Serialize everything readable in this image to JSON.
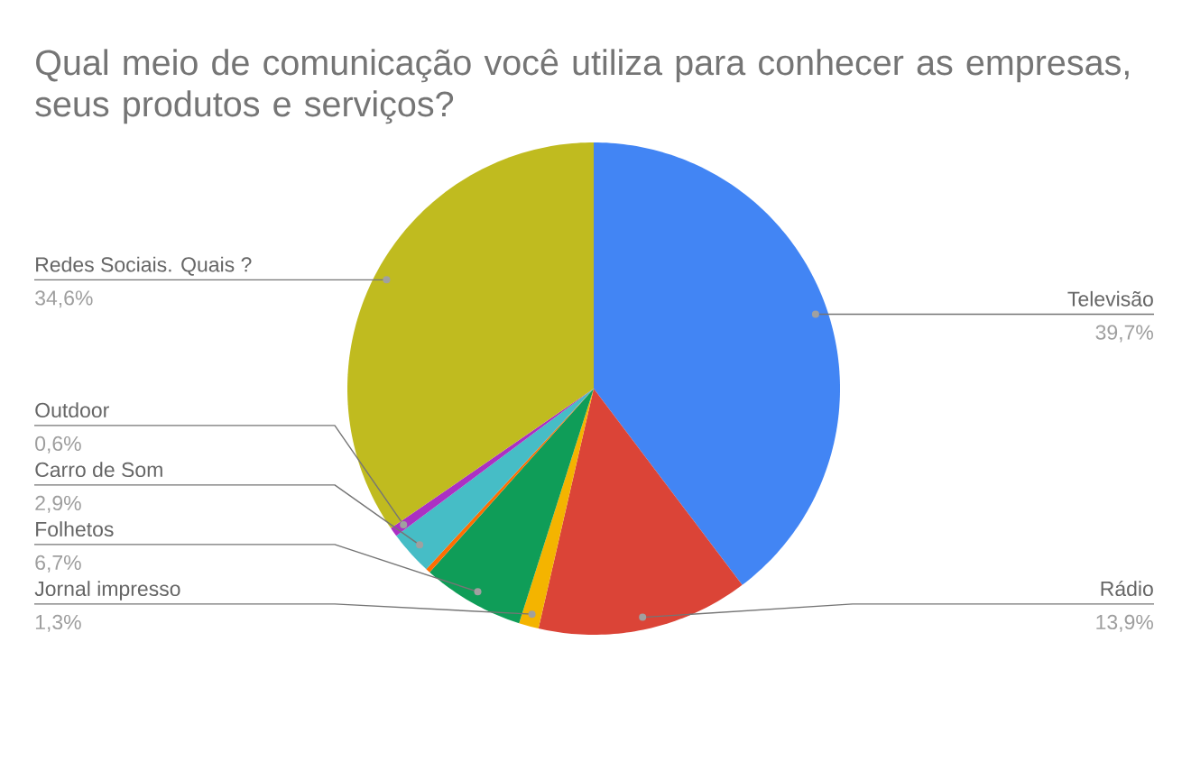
{
  "chart_data": {
    "type": "pie",
    "title": "Qual meio de comunicação você utiliza para conhecer as empresas, seus produtos e serviços?",
    "categories": [
      "Televisão",
      "Rádio",
      "Jornal impresso",
      "Folhetos",
      null,
      "Carro de Som",
      "Outdoor",
      "Redes Sociais. Quais ?"
    ],
    "values": [
      39.7,
      13.9,
      1.3,
      6.7,
      0.3,
      2.9,
      0.6,
      34.6
    ],
    "colors": [
      "#4285f4",
      "#db4437",
      "#f4b400",
      "#0f9d58",
      "#ff6d00",
      "#46bdc6",
      "#ab30c4",
      "#c0bb1f"
    ],
    "value_labels": [
      "39,7%",
      "13,9%",
      "1,3%",
      "6,7%",
      null,
      "2,9%",
      "0,6%",
      "34,6%"
    ]
  }
}
